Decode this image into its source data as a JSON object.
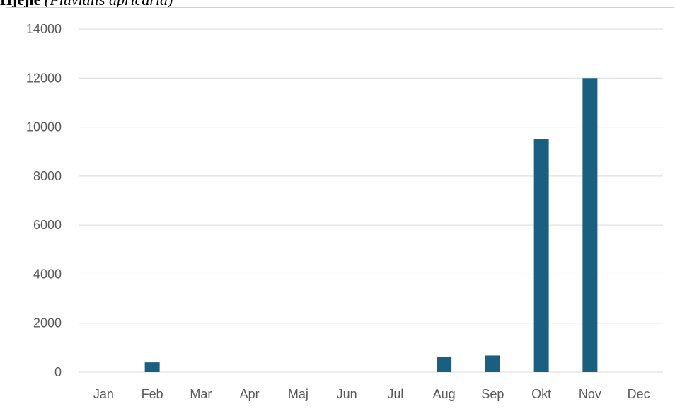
{
  "title": {
    "bold": "Hjejle",
    "italic": "(Pluvialis apricaria)"
  },
  "chart_data": {
    "type": "bar",
    "categories": [
      "Jan",
      "Feb",
      "Mar",
      "Apr",
      "Maj",
      "Jun",
      "Jul",
      "Aug",
      "Sep",
      "Okt",
      "Nov",
      "Dec"
    ],
    "values": [
      0,
      400,
      0,
      0,
      0,
      0,
      0,
      620,
      680,
      9500,
      12000,
      0
    ],
    "ylim": [
      0,
      14000
    ],
    "yticks": [
      0,
      2000,
      4000,
      6000,
      8000,
      10000,
      12000,
      14000
    ],
    "grid": true,
    "bar_color": "#1a5e80",
    "grid_color": "#d9d9d9"
  }
}
